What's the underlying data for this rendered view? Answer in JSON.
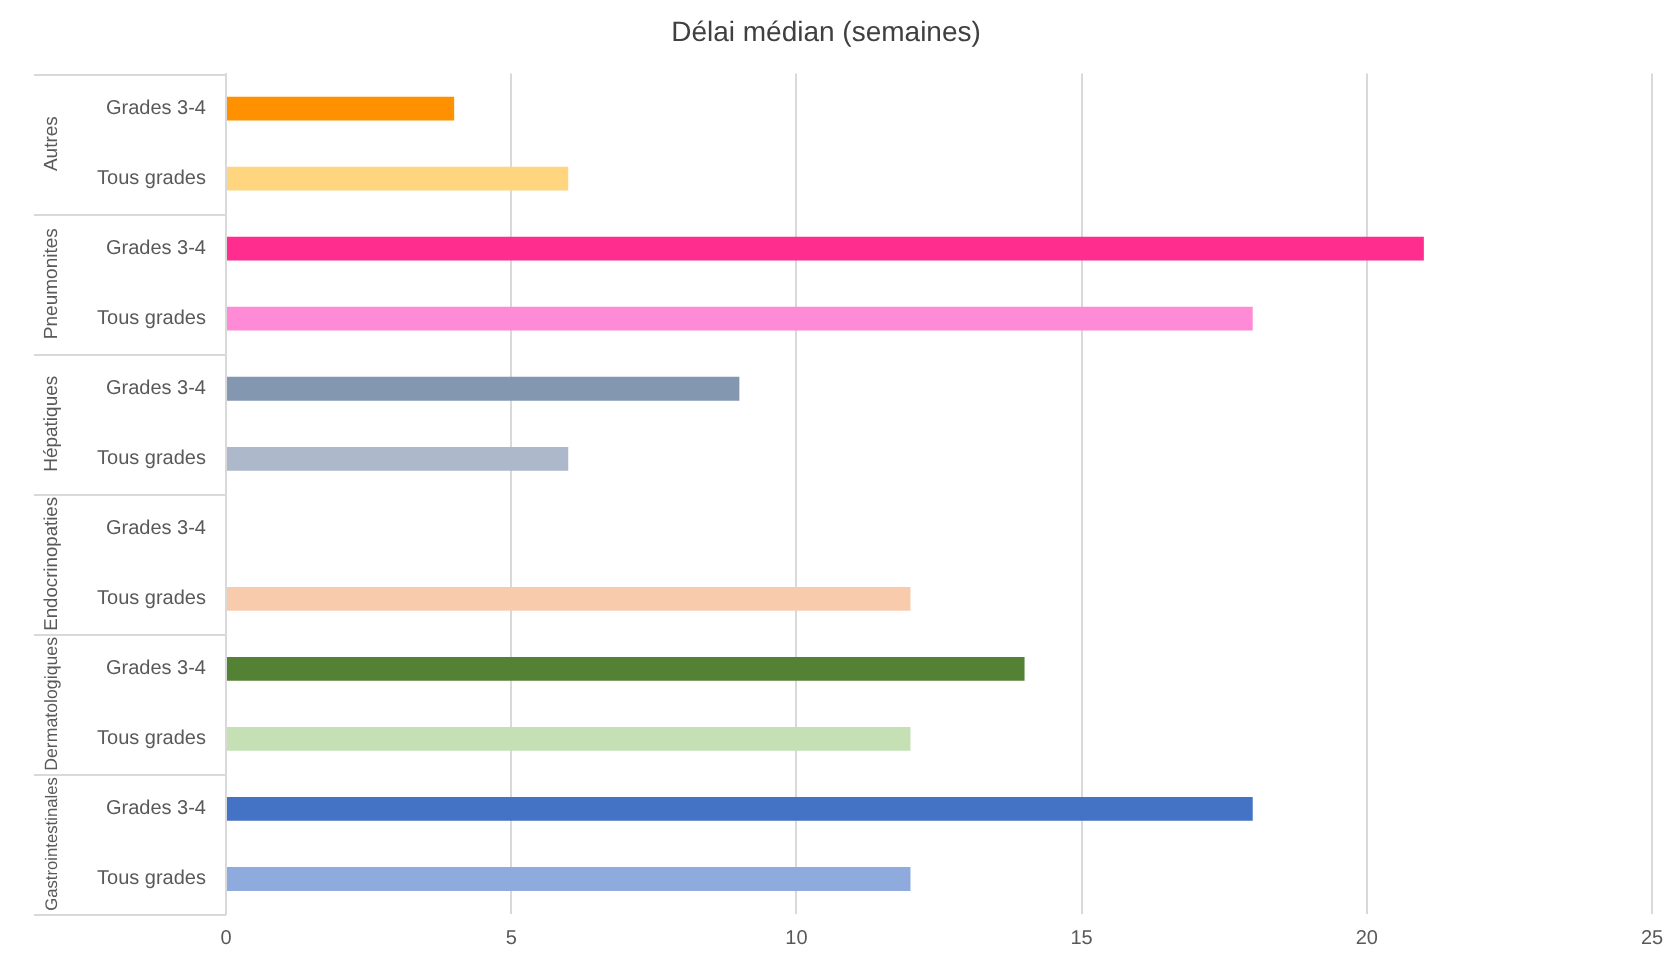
{
  "chart_data": {
    "type": "bar",
    "orientation": "horizontal",
    "title": "Délai médian (semaines)",
    "categories": [
      "Grades 3-4",
      "Tous grades",
      "Grades 3-4",
      "Tous grades",
      "Grades 3-4",
      "Tous grades",
      "Grades 3-4",
      "Tous grades",
      "Grades 3-4",
      "Tous grades",
      "Grades 3-4",
      "Tous grades"
    ],
    "values": [
      4,
      6,
      21,
      18,
      9,
      6,
      null,
      12,
      14,
      12,
      18,
      12
    ],
    "colors": [
      "#ff9100",
      "#ffd57f",
      "#ff2d8d",
      "#ff8ad6",
      "#8497b0",
      "#adb9ca",
      null,
      "#f8cbad",
      "#548235",
      "#c5e0b4",
      "#4472c4",
      "#8faadc"
    ],
    "xlim": [
      0,
      25
    ],
    "xticks": [
      0,
      5,
      10,
      15,
      20,
      25
    ],
    "grid": "x",
    "annotations": [
      "Autres",
      "Pneumonites",
      "Hépatiques",
      "Endocrinopaties",
      "Dermatologiques",
      "Gastrointestinales"
    ]
  }
}
